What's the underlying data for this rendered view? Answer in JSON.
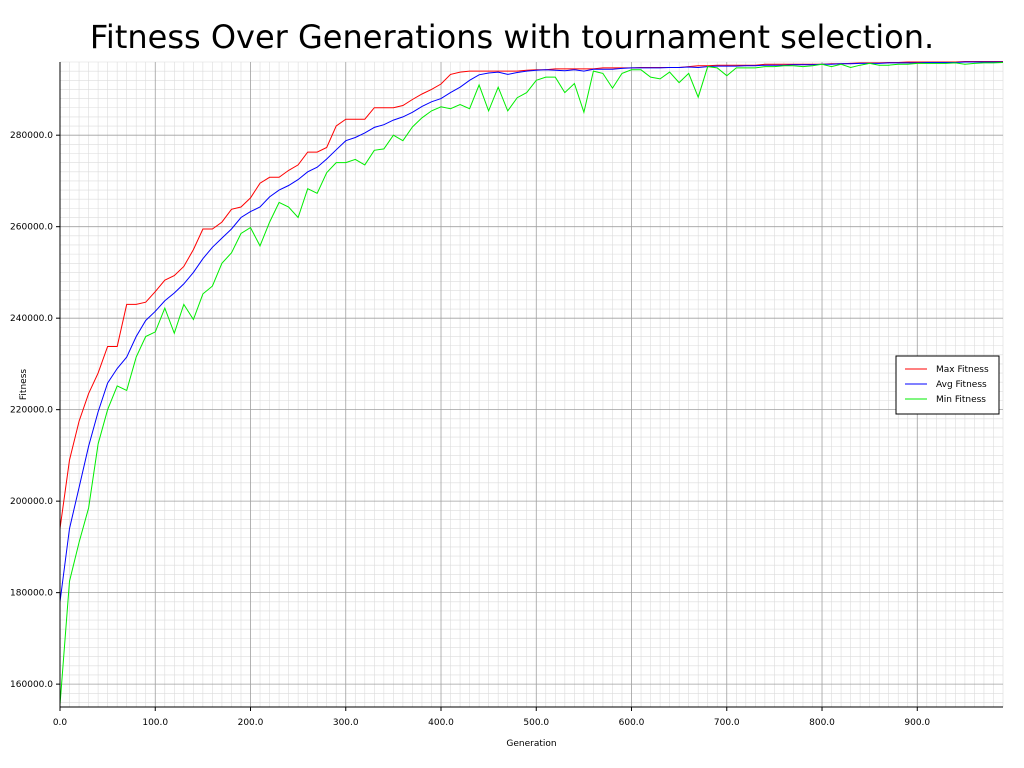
{
  "chart_data": {
    "type": "line",
    "title": "Fitness Over Generations with tournament selection.",
    "xlabel": "Generation",
    "ylabel": "Fitness",
    "xlim": [
      0,
      990
    ],
    "ylim": [
      155000,
      296000
    ],
    "x_ticks": [
      0,
      100,
      200,
      300,
      400,
      500,
      600,
      700,
      800,
      900
    ],
    "x_tick_labels": [
      "0.0",
      "100.0",
      "200.0",
      "300.0",
      "400.0",
      "500.0",
      "600.0",
      "700.0",
      "800.0",
      "900.0"
    ],
    "y_ticks": [
      160000,
      180000,
      200000,
      220000,
      240000,
      260000,
      280000
    ],
    "y_tick_labels": [
      "160000.0",
      "180000.0",
      "200000.0",
      "220000.0",
      "240000.0",
      "260000.0",
      "280000.0"
    ],
    "grid": true,
    "legend_position": "right",
    "series": [
      {
        "name": "Max Fitness",
        "color": "#ff0000",
        "points": [
          [
            0,
            194000
          ],
          [
            10,
            209000
          ],
          [
            20,
            217500
          ],
          [
            30,
            223500
          ],
          [
            40,
            228000
          ],
          [
            50,
            233800
          ],
          [
            60,
            233800
          ],
          [
            70,
            243000
          ],
          [
            80,
            243000
          ],
          [
            90,
            243500
          ],
          [
            100,
            245800
          ],
          [
            110,
            248300
          ],
          [
            120,
            249300
          ],
          [
            130,
            251300
          ],
          [
            140,
            255000
          ],
          [
            150,
            259500
          ],
          [
            160,
            259500
          ],
          [
            170,
            261000
          ],
          [
            180,
            263800
          ],
          [
            190,
            264300
          ],
          [
            200,
            266300
          ],
          [
            210,
            269500
          ],
          [
            220,
            270800
          ],
          [
            230,
            270800
          ],
          [
            240,
            272300
          ],
          [
            250,
            273500
          ],
          [
            260,
            276300
          ],
          [
            270,
            276300
          ],
          [
            280,
            277300
          ],
          [
            290,
            282000
          ],
          [
            300,
            283500
          ],
          [
            310,
            283500
          ],
          [
            320,
            283500
          ],
          [
            330,
            286000
          ],
          [
            340,
            286000
          ],
          [
            350,
            286000
          ],
          [
            360,
            286500
          ],
          [
            370,
            287800
          ],
          [
            380,
            289000
          ],
          [
            390,
            290000
          ],
          [
            400,
            291200
          ],
          [
            410,
            293300
          ],
          [
            420,
            293800
          ],
          [
            430,
            294000
          ],
          [
            440,
            294000
          ],
          [
            450,
            294000
          ],
          [
            460,
            294000
          ],
          [
            470,
            294000
          ],
          [
            480,
            294000
          ],
          [
            490,
            294200
          ],
          [
            500,
            294300
          ],
          [
            510,
            294300
          ],
          [
            520,
            294500
          ],
          [
            530,
            294500
          ],
          [
            540,
            294500
          ],
          [
            550,
            294500
          ],
          [
            560,
            294500
          ],
          [
            570,
            294700
          ],
          [
            580,
            294700
          ],
          [
            590,
            294700
          ],
          [
            600,
            294700
          ],
          [
            610,
            294800
          ],
          [
            620,
            294800
          ],
          [
            630,
            294800
          ],
          [
            640,
            294800
          ],
          [
            650,
            294800
          ],
          [
            660,
            295000
          ],
          [
            670,
            295200
          ],
          [
            680,
            295200
          ],
          [
            690,
            295300
          ],
          [
            700,
            295300
          ],
          [
            710,
            295300
          ],
          [
            720,
            295300
          ],
          [
            730,
            295300
          ],
          [
            740,
            295500
          ],
          [
            750,
            295500
          ],
          [
            760,
            295500
          ],
          [
            770,
            295500
          ],
          [
            780,
            295500
          ],
          [
            790,
            295500
          ],
          [
            800,
            295500
          ],
          [
            810,
            295600
          ],
          [
            820,
            295600
          ],
          [
            830,
            295700
          ],
          [
            840,
            295800
          ],
          [
            850,
            295800
          ],
          [
            860,
            295800
          ],
          [
            870,
            295900
          ],
          [
            880,
            295900
          ],
          [
            890,
            296000
          ],
          [
            900,
            296000
          ],
          [
            910,
            296000
          ],
          [
            920,
            296000
          ],
          [
            930,
            296000
          ],
          [
            940,
            296000
          ],
          [
            950,
            296100
          ],
          [
            960,
            296100
          ],
          [
            970,
            296100
          ],
          [
            980,
            296100
          ],
          [
            990,
            296100
          ]
        ]
      },
      {
        "name": "Avg Fitness",
        "color": "#0000ff",
        "points": [
          [
            0,
            178000
          ],
          [
            10,
            194000
          ],
          [
            20,
            203000
          ],
          [
            30,
            212000
          ],
          [
            40,
            219500
          ],
          [
            50,
            225800
          ],
          [
            60,
            229000
          ],
          [
            70,
            231500
          ],
          [
            80,
            236000
          ],
          [
            90,
            239500
          ],
          [
            100,
            241500
          ],
          [
            110,
            243800
          ],
          [
            120,
            245500
          ],
          [
            130,
            247500
          ],
          [
            140,
            250000
          ],
          [
            150,
            253000
          ],
          [
            160,
            255500
          ],
          [
            170,
            257500
          ],
          [
            180,
            259500
          ],
          [
            190,
            262000
          ],
          [
            200,
            263300
          ],
          [
            210,
            264300
          ],
          [
            220,
            266500
          ],
          [
            230,
            268000
          ],
          [
            240,
            269000
          ],
          [
            250,
            270300
          ],
          [
            260,
            272000
          ],
          [
            270,
            273000
          ],
          [
            280,
            274800
          ],
          [
            290,
            276800
          ],
          [
            300,
            278800
          ],
          [
            310,
            279500
          ],
          [
            320,
            280500
          ],
          [
            330,
            281700
          ],
          [
            340,
            282300
          ],
          [
            350,
            283300
          ],
          [
            360,
            284000
          ],
          [
            370,
            285000
          ],
          [
            380,
            286300
          ],
          [
            390,
            287300
          ],
          [
            400,
            288000
          ],
          [
            410,
            289300
          ],
          [
            420,
            290500
          ],
          [
            430,
            292000
          ],
          [
            440,
            293200
          ],
          [
            450,
            293600
          ],
          [
            460,
            293800
          ],
          [
            470,
            293300
          ],
          [
            480,
            293700
          ],
          [
            490,
            294000
          ],
          [
            500,
            294200
          ],
          [
            510,
            294300
          ],
          [
            520,
            294200
          ],
          [
            530,
            294100
          ],
          [
            540,
            294300
          ],
          [
            550,
            294000
          ],
          [
            560,
            294400
          ],
          [
            570,
            294400
          ],
          [
            580,
            294400
          ],
          [
            590,
            294600
          ],
          [
            600,
            294700
          ],
          [
            610,
            294700
          ],
          [
            620,
            294700
          ],
          [
            630,
            294700
          ],
          [
            640,
            294800
          ],
          [
            650,
            294800
          ],
          [
            660,
            294900
          ],
          [
            670,
            294800
          ],
          [
            680,
            295000
          ],
          [
            690,
            295100
          ],
          [
            700,
            295100
          ],
          [
            710,
            295100
          ],
          [
            720,
            295200
          ],
          [
            730,
            295200
          ],
          [
            740,
            295300
          ],
          [
            750,
            295300
          ],
          [
            760,
            295300
          ],
          [
            770,
            295400
          ],
          [
            780,
            295400
          ],
          [
            790,
            295400
          ],
          [
            800,
            295500
          ],
          [
            810,
            295500
          ],
          [
            820,
            295600
          ],
          [
            830,
            295600
          ],
          [
            840,
            295700
          ],
          [
            850,
            295700
          ],
          [
            860,
            295700
          ],
          [
            870,
            295800
          ],
          [
            880,
            295800
          ],
          [
            890,
            295800
          ],
          [
            900,
            295800
          ],
          [
            910,
            295900
          ],
          [
            920,
            295900
          ],
          [
            930,
            295900
          ],
          [
            940,
            295900
          ],
          [
            950,
            296000
          ],
          [
            960,
            296000
          ],
          [
            970,
            296000
          ],
          [
            980,
            296000
          ],
          [
            990,
            296000
          ]
        ]
      },
      {
        "name": "Min Fitness",
        "color": "#00ee00",
        "points": [
          [
            0,
            155500
          ],
          [
            10,
            182500
          ],
          [
            20,
            191000
          ],
          [
            30,
            198500
          ],
          [
            40,
            212500
          ],
          [
            50,
            220000
          ],
          [
            60,
            225200
          ],
          [
            70,
            224200
          ],
          [
            80,
            231500
          ],
          [
            90,
            236000
          ],
          [
            100,
            237000
          ],
          [
            110,
            242200
          ],
          [
            120,
            236700
          ],
          [
            130,
            243000
          ],
          [
            140,
            239700
          ],
          [
            150,
            245300
          ],
          [
            160,
            247000
          ],
          [
            170,
            252000
          ],
          [
            180,
            254300
          ],
          [
            190,
            258500
          ],
          [
            200,
            259800
          ],
          [
            210,
            255800
          ],
          [
            220,
            261000
          ],
          [
            230,
            265300
          ],
          [
            240,
            264300
          ],
          [
            250,
            262000
          ],
          [
            260,
            268300
          ],
          [
            270,
            267300
          ],
          [
            280,
            271800
          ],
          [
            290,
            274000
          ],
          [
            300,
            274000
          ],
          [
            310,
            274700
          ],
          [
            320,
            273500
          ],
          [
            330,
            276700
          ],
          [
            340,
            277000
          ],
          [
            350,
            280000
          ],
          [
            360,
            278800
          ],
          [
            370,
            281800
          ],
          [
            380,
            283800
          ],
          [
            390,
            285300
          ],
          [
            400,
            286200
          ],
          [
            410,
            285800
          ],
          [
            420,
            286700
          ],
          [
            430,
            285800
          ],
          [
            440,
            291000
          ],
          [
            450,
            285300
          ],
          [
            460,
            290500
          ],
          [
            470,
            285300
          ],
          [
            480,
            288200
          ],
          [
            490,
            289300
          ],
          [
            500,
            292000
          ],
          [
            510,
            292700
          ],
          [
            520,
            292700
          ],
          [
            530,
            289300
          ],
          [
            540,
            291300
          ],
          [
            550,
            285000
          ],
          [
            560,
            294000
          ],
          [
            570,
            293500
          ],
          [
            580,
            290300
          ],
          [
            590,
            293500
          ],
          [
            600,
            294300
          ],
          [
            610,
            294300
          ],
          [
            620,
            292700
          ],
          [
            630,
            292300
          ],
          [
            640,
            293800
          ],
          [
            650,
            291500
          ],
          [
            660,
            293500
          ],
          [
            670,
            288300
          ],
          [
            680,
            295000
          ],
          [
            690,
            294700
          ],
          [
            700,
            293000
          ],
          [
            710,
            294700
          ],
          [
            720,
            294700
          ],
          [
            730,
            294700
          ],
          [
            740,
            295000
          ],
          [
            750,
            295000
          ],
          [
            760,
            295200
          ],
          [
            770,
            295200
          ],
          [
            780,
            295000
          ],
          [
            790,
            295200
          ],
          [
            800,
            295500
          ],
          [
            810,
            295000
          ],
          [
            820,
            295500
          ],
          [
            830,
            294800
          ],
          [
            840,
            295300
          ],
          [
            850,
            295700
          ],
          [
            860,
            295300
          ],
          [
            870,
            295300
          ],
          [
            880,
            295500
          ],
          [
            890,
            295500
          ],
          [
            900,
            295700
          ],
          [
            910,
            295700
          ],
          [
            920,
            295700
          ],
          [
            930,
            295700
          ],
          [
            940,
            295800
          ],
          [
            950,
            295500
          ],
          [
            960,
            295700
          ],
          [
            970,
            295800
          ],
          [
            980,
            295800
          ],
          [
            990,
            295900
          ]
        ]
      }
    ]
  }
}
